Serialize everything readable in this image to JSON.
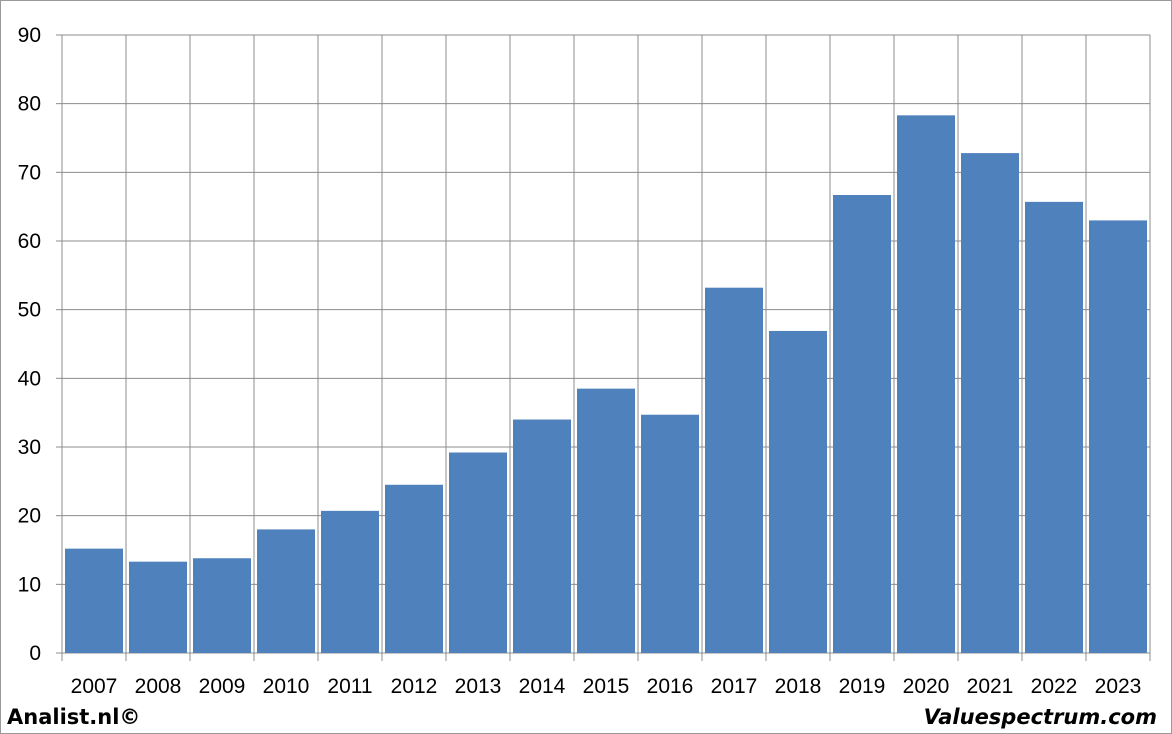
{
  "chart_data": {
    "type": "bar",
    "categories": [
      "2007",
      "2008",
      "2009",
      "2010",
      "2011",
      "2012",
      "2013",
      "2014",
      "2015",
      "2016",
      "2017",
      "2018",
      "2019",
      "2020",
      "2021",
      "2022",
      "2023"
    ],
    "values": [
      15.2,
      13.3,
      13.8,
      18.0,
      20.7,
      24.5,
      29.2,
      34.0,
      38.5,
      34.7,
      53.2,
      46.9,
      66.7,
      78.3,
      72.8,
      65.7,
      63.0
    ],
    "ylim": [
      0,
      90
    ],
    "yticks": [
      0,
      10,
      20,
      30,
      40,
      50,
      60,
      70,
      80,
      90
    ],
    "grid": true,
    "bar_color": "#4F81BD",
    "title": "",
    "xlabel": "",
    "ylabel": ""
  },
  "footer": {
    "left": "Analist.nl©",
    "right": "Valuespectrum.com"
  }
}
